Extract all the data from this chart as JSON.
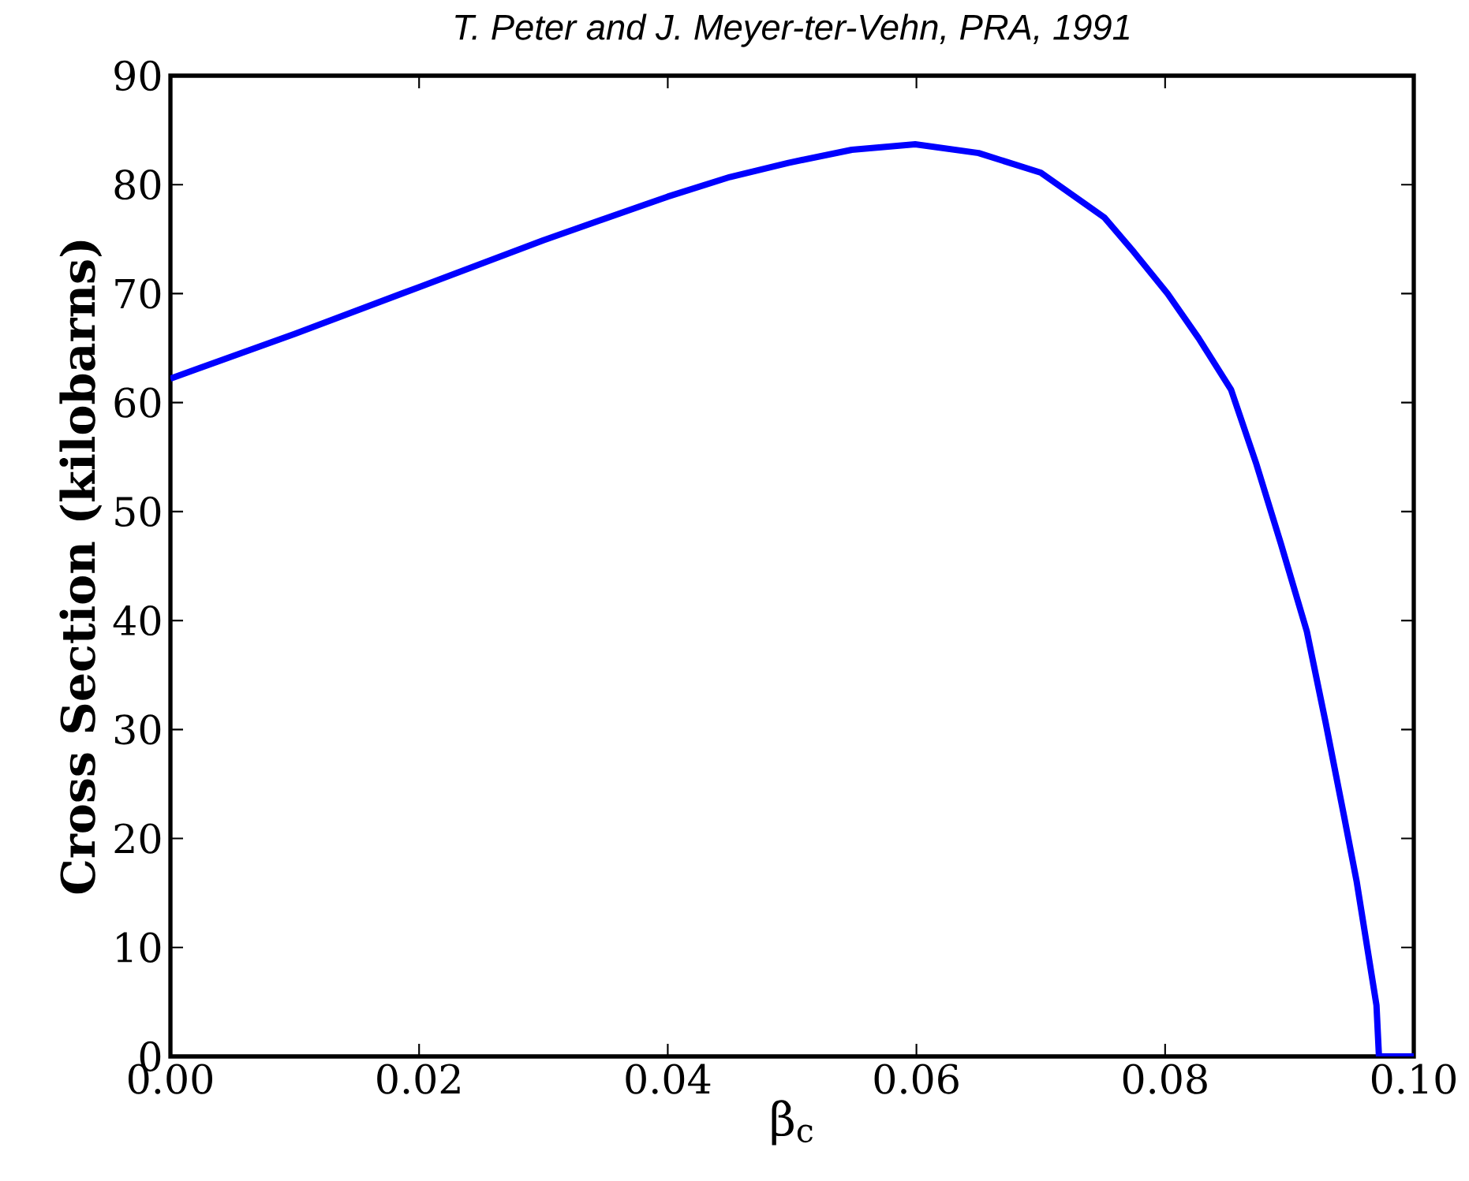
{
  "chart_data": {
    "type": "line",
    "title": "*T. Peter and J. Meyer-ter-Vehn, PRA, 1991*",
    "xlabel": "β$_{c}$",
    "ylabel": "**Cross Section (kilobarns)**",
    "xlim": [
      0,
      0.1
    ],
    "ylim": [
      0,
      90
    ],
    "xticks": [
      {
        "value": 0,
        "label": "0.00"
      },
      {
        "value": 0.02,
        "label": "0.02"
      },
      {
        "value": 0.04,
        "label": "0.04"
      },
      {
        "value": 0.06,
        "label": "0.06"
      },
      {
        "value": 0.08,
        "label": "0.08"
      },
      {
        "value": 0.1,
        "label": "0.10"
      }
    ],
    "yticks": [
      0,
      10,
      20,
      30,
      40,
      50,
      60,
      70,
      80,
      90
    ],
    "series": [
      {
        "color": "#0000ff",
        "x": [
          0,
          0.01,
          0.02,
          0.03,
          0.04,
          0.045,
          0.0497,
          0.0548,
          0.0599,
          0.065,
          0.07,
          0.0751,
          0.0775,
          0.0802,
          0.0827,
          0.0853,
          0.0873,
          0.0893,
          0.0914,
          0.0929,
          0.0944,
          0.0954,
          0.097,
          0.0972,
          0.1
        ],
        "values": [
          62.2,
          66.3,
          70.6,
          74.9,
          78.9,
          80.7,
          82.0,
          83.2,
          83.7,
          82.9,
          81.1,
          77.0,
          73.8,
          70.0,
          65.9,
          61.2,
          54.5,
          47.1,
          39.0,
          30.7,
          22.0,
          16.1,
          4.7,
          0,
          0
        ]
      }
    ]
  }
}
